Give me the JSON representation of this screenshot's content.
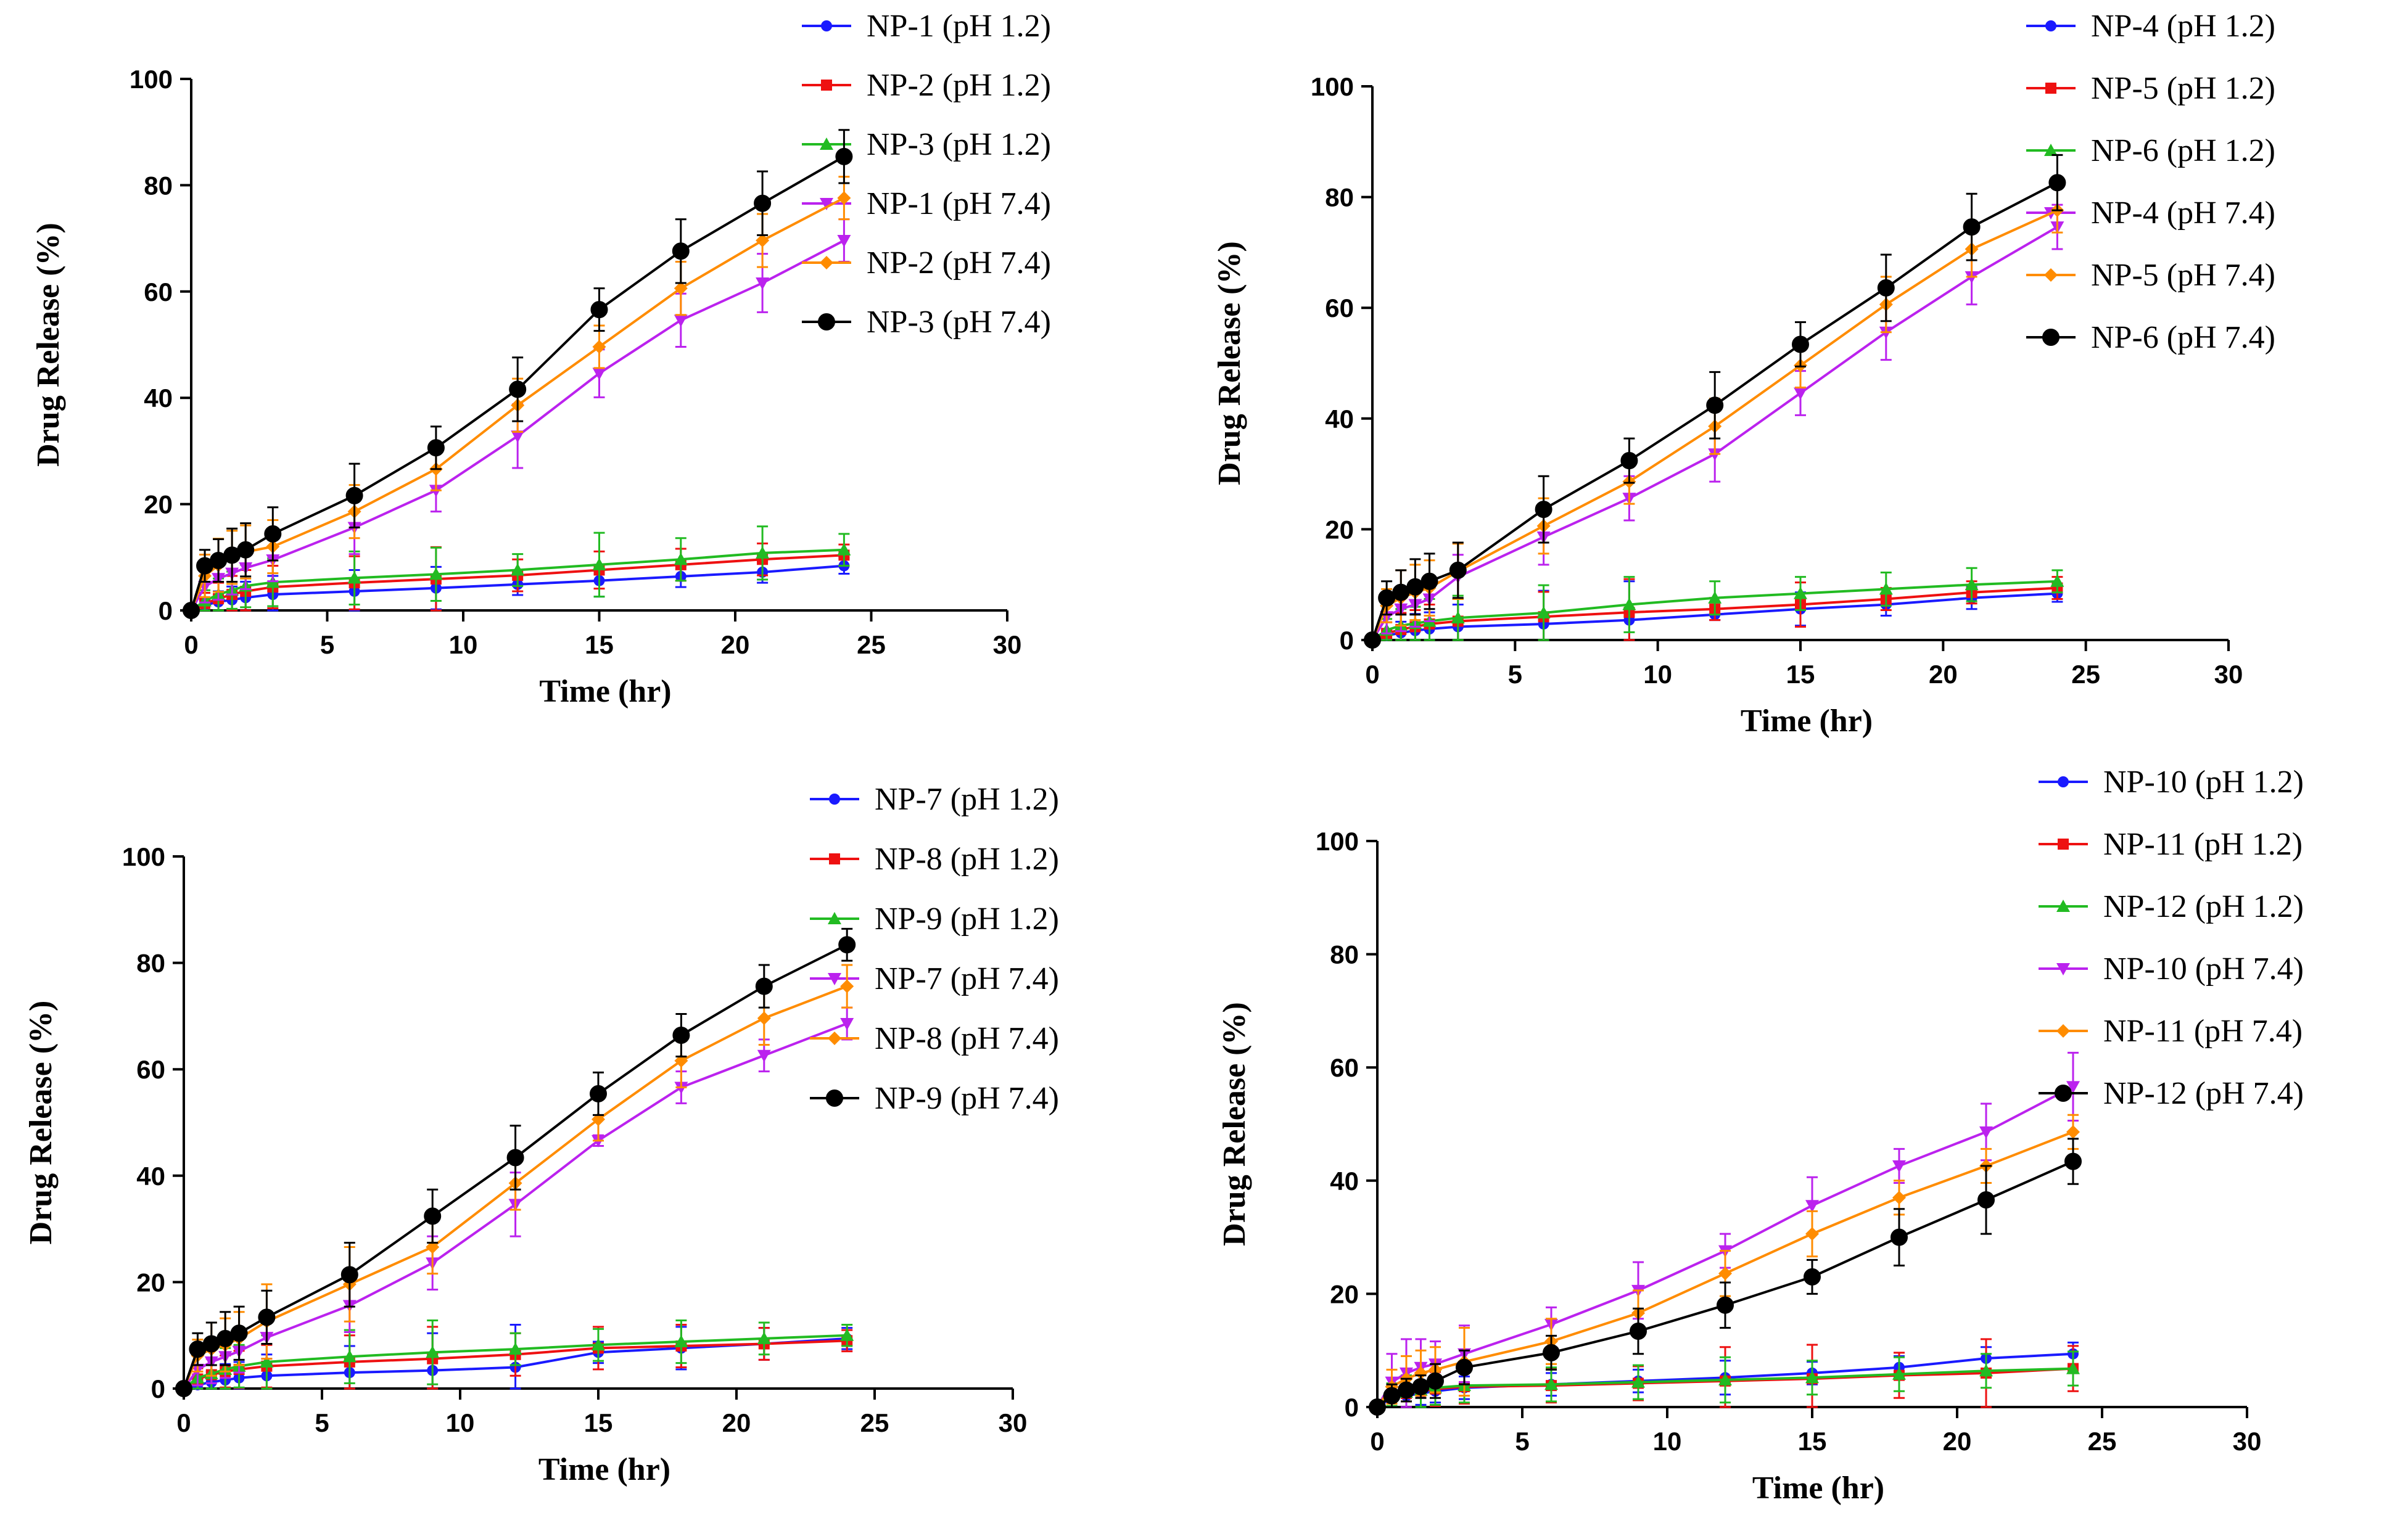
{
  "chart_data": [
    {
      "type": "line",
      "xlabel": "Time (hr)",
      "ylabel": "Drug Release (%)",
      "xlim": [
        0,
        30
      ],
      "ylim": [
        0,
        100
      ],
      "xticks": [
        0,
        5,
        10,
        15,
        20,
        25,
        30
      ],
      "yticks": [
        0,
        20,
        40,
        60,
        80,
        100
      ],
      "legend_position": "top-right",
      "x": [
        0,
        0.5,
        1,
        1.5,
        2,
        3,
        6,
        9,
        12,
        15,
        18,
        21,
        24
      ],
      "series": [
        {
          "name": "NP-1 (pH 1.2)",
          "color": "#1a1aff",
          "marker": "circle-small",
          "values": [
            0,
            1.0,
            1.6,
            2.0,
            2.4,
            3.0,
            3.6,
            4.2,
            4.9,
            5.6,
            6.4,
            7.2,
            8.4
          ],
          "errors": [
            0,
            1,
            2,
            2.5,
            3,
            3.5,
            4,
            4,
            2,
            3,
            2,
            2,
            1.5
          ]
        },
        {
          "name": "NP-2 (pH 1.2)",
          "color": "#ee1111",
          "marker": "square",
          "values": [
            0,
            1.3,
            2.2,
            3.0,
            3.6,
            4.4,
            5.2,
            5.9,
            6.6,
            7.6,
            8.6,
            9.6,
            10.4
          ],
          "errors": [
            0,
            2,
            3,
            3.5,
            4,
            4,
            5,
            6,
            3,
            3.5,
            3,
            3,
            2
          ]
        },
        {
          "name": "NP-3 (pH 1.2)",
          "color": "#22bb22",
          "marker": "triangle-up",
          "values": [
            0,
            1.8,
            3.0,
            3.8,
            4.6,
            5.3,
            6.1,
            6.8,
            7.6,
            8.6,
            9.6,
            10.8,
            11.4
          ],
          "errors": [
            0,
            2,
            3,
            3.5,
            4,
            4.5,
            5,
            5,
            3,
            6,
            4,
            5,
            3
          ]
        },
        {
          "name": "NP-1 (pH 7.4)",
          "color": "#bb22ee",
          "marker": "triangle-down",
          "values": [
            0,
            4.5,
            6.0,
            7.0,
            8.0,
            9.5,
            15.6,
            22.6,
            32.8,
            44.6,
            54.6,
            61.6,
            69.6
          ],
          "errors": [
            0,
            3,
            4,
            4,
            4,
            4,
            5,
            4,
            6,
            4.5,
            5,
            5.5,
            4
          ]
        },
        {
          "name": "NP-2 (pH 7.4)",
          "color": "#ff8c00",
          "marker": "diamond",
          "values": [
            0,
            6.5,
            8.5,
            10.0,
            11.0,
            12.0,
            18.6,
            26.6,
            38.6,
            49.6,
            60.6,
            69.6,
            77.6
          ],
          "errors": [
            0,
            4,
            5,
            5,
            5,
            5,
            5,
            4,
            5,
            4,
            5,
            5,
            4
          ]
        },
        {
          "name": "NP-3 (pH 7.4)",
          "color": "#000000",
          "marker": "circle",
          "values": [
            0,
            8.4,
            9.4,
            10.4,
            11.4,
            14.4,
            21.6,
            30.6,
            41.6,
            56.6,
            67.6,
            76.6,
            85.4
          ],
          "errors": [
            0,
            3,
            4,
            5,
            5,
            5,
            6,
            4,
            6,
            4,
            6,
            6,
            5
          ]
        }
      ]
    },
    {
      "type": "line",
      "xlabel": "Time (hr)",
      "ylabel": "Drug Release (%)",
      "xlim": [
        0,
        30
      ],
      "ylim": [
        0,
        100
      ],
      "xticks": [
        0,
        5,
        10,
        15,
        20,
        25,
        30
      ],
      "yticks": [
        0,
        20,
        40,
        60,
        80,
        100
      ],
      "legend_position": "top-right",
      "x": [
        0,
        0.5,
        1,
        1.5,
        2,
        3,
        6,
        9,
        12,
        15,
        18,
        21,
        24
      ],
      "series": [
        {
          "name": "NP-4 (pH 1.2)",
          "color": "#1a1aff",
          "marker": "circle-small",
          "values": [
            0,
            0.8,
            1.3,
            1.7,
            2.0,
            2.4,
            2.9,
            3.6,
            4.6,
            5.6,
            6.4,
            7.6,
            8.4
          ],
          "errors": [
            0,
            1,
            2,
            3,
            3,
            4,
            6,
            7,
            1,
            3,
            2,
            2,
            1.5
          ]
        },
        {
          "name": "NP-5 (pH 1.2)",
          "color": "#ee1111",
          "marker": "square",
          "values": [
            0,
            1.2,
            1.9,
            2.4,
            2.9,
            3.4,
            4.2,
            5.0,
            5.6,
            6.4,
            7.4,
            8.6,
            9.4
          ],
          "errors": [
            0,
            2,
            3,
            3,
            3.5,
            4,
            4.5,
            6,
            2,
            4,
            2,
            2,
            2
          ]
        },
        {
          "name": "NP-6 (pH 1.2)",
          "color": "#22bb22",
          "marker": "triangle-up",
          "values": [
            0,
            1.8,
            2.6,
            3.0,
            3.4,
            4.0,
            4.9,
            6.4,
            7.6,
            8.4,
            9.2,
            10.0,
            10.6
          ],
          "errors": [
            0,
            2,
            3,
            3,
            4,
            4,
            5,
            5,
            3,
            3,
            3,
            3,
            2
          ]
        },
        {
          "name": "NP-4 (pH 7.4)",
          "color": "#bb22ee",
          "marker": "triangle-down",
          "values": [
            0,
            4.2,
            5.6,
            6.4,
            7.4,
            11.4,
            18.6,
            25.6,
            33.6,
            44.6,
            55.6,
            65.6,
            74.6
          ],
          "errors": [
            0,
            3,
            4,
            4,
            4,
            4,
            5,
            4,
            5,
            4,
            5,
            5,
            4
          ]
        },
        {
          "name": "NP-5 (pH 7.4)",
          "color": "#ff8c00",
          "marker": "diamond",
          "values": [
            0,
            6.2,
            7.6,
            8.6,
            9.4,
            12.4,
            20.6,
            28.6,
            38.6,
            49.6,
            60.6,
            70.6,
            77.6
          ],
          "errors": [
            0,
            3,
            5,
            5,
            5,
            5,
            5,
            4,
            5,
            4,
            5,
            5,
            4
          ]
        },
        {
          "name": "NP-6 (pH 7.4)",
          "color": "#000000",
          "marker": "circle",
          "values": [
            0,
            7.6,
            8.6,
            9.6,
            10.6,
            12.6,
            23.6,
            32.4,
            42.4,
            53.4,
            63.6,
            74.6,
            82.6
          ],
          "errors": [
            0,
            3,
            4,
            5,
            5,
            5,
            6,
            4,
            6,
            4,
            6,
            6,
            5
          ]
        }
      ]
    },
    {
      "type": "line",
      "xlabel": "Time (hr)",
      "ylabel": "Drug Release (%)",
      "xlim": [
        0,
        30
      ],
      "ylim": [
        0,
        100
      ],
      "xticks": [
        0,
        5,
        10,
        15,
        20,
        25,
        30
      ],
      "yticks": [
        0,
        20,
        40,
        60,
        80,
        100
      ],
      "legend_position": "top-right",
      "x": [
        0,
        0.5,
        1,
        1.5,
        2,
        3,
        6,
        9,
        12,
        15,
        18,
        21,
        24
      ],
      "series": [
        {
          "name": "NP-7 (pH 1.2)",
          "color": "#1a1aff",
          "marker": "circle-small",
          "values": [
            0,
            0.7,
            1.2,
            1.6,
            2.0,
            2.4,
            3.0,
            3.4,
            4.0,
            6.8,
            7.6,
            8.4,
            9.4
          ],
          "errors": [
            0,
            1,
            2,
            3,
            3,
            4,
            5,
            7,
            8,
            2,
            4,
            3,
            2
          ]
        },
        {
          "name": "NP-8 (pH 1.2)",
          "color": "#ee1111",
          "marker": "square",
          "values": [
            0,
            1.8,
            2.6,
            3.2,
            3.6,
            4.2,
            5.0,
            5.6,
            6.4,
            7.6,
            8.0,
            8.4,
            9.0
          ],
          "errors": [
            0,
            2,
            3,
            3,
            3.5,
            4,
            5,
            6,
            4,
            4,
            4,
            3,
            2
          ]
        },
        {
          "name": "NP-9 (pH 1.2)",
          "color": "#22bb22",
          "marker": "triangle-up",
          "values": [
            0,
            2.0,
            2.8,
            3.6,
            4.2,
            5.0,
            6.0,
            6.8,
            7.4,
            8.2,
            8.8,
            9.4,
            10.0
          ],
          "errors": [
            0,
            2,
            3,
            4,
            4,
            5,
            5,
            6,
            3,
            3,
            4,
            3,
            2
          ]
        },
        {
          "name": "NP-7 (pH 7.4)",
          "color": "#bb22ee",
          "marker": "triangle-down",
          "values": [
            0,
            3.6,
            5.0,
            6.0,
            7.0,
            9.6,
            15.6,
            23.6,
            34.6,
            46.6,
            56.6,
            62.6,
            68.6
          ],
          "errors": [
            0,
            3,
            4,
            4,
            4,
            4,
            5,
            5,
            6,
            1,
            3,
            3,
            3
          ]
        },
        {
          "name": "NP-8 (pH 7.4)",
          "color": "#ff8c00",
          "marker": "diamond",
          "values": [
            0,
            6.2,
            7.4,
            8.2,
            9.4,
            12.6,
            19.6,
            26.6,
            38.6,
            50.6,
            61.6,
            69.6,
            75.6
          ],
          "errors": [
            0,
            3,
            5,
            5,
            5,
            7,
            7,
            5,
            5,
            4,
            5,
            5,
            4
          ]
        },
        {
          "name": "NP-9 (pH 7.4)",
          "color": "#000000",
          "marker": "circle",
          "values": [
            0,
            7.4,
            8.4,
            9.4,
            10.4,
            13.4,
            21.4,
            32.4,
            43.4,
            55.4,
            66.4,
            75.6,
            83.4
          ],
          "errors": [
            0,
            3,
            4,
            5,
            5,
            5,
            6,
            5,
            6,
            4,
            4,
            4,
            3
          ]
        }
      ]
    },
    {
      "type": "line",
      "xlabel": "Time (hr)",
      "ylabel": "Drug Release (%)",
      "xlim": [
        0,
        30
      ],
      "ylim": [
        0,
        100
      ],
      "xticks": [
        0,
        5,
        10,
        15,
        20,
        25,
        30
      ],
      "yticks": [
        0,
        20,
        40,
        60,
        80,
        100
      ],
      "legend_position": "top-right",
      "x": [
        0,
        0.5,
        1,
        1.5,
        2,
        3,
        6,
        9,
        12,
        15,
        18,
        21,
        24
      ],
      "series": [
        {
          "name": "NP-10 (pH 1.2)",
          "color": "#1a1aff",
          "marker": "circle-small",
          "values": [
            0,
            1.6,
            2.0,
            2.4,
            2.8,
            3.4,
            4.0,
            4.6,
            5.2,
            6.0,
            7.0,
            8.6,
            9.4
          ],
          "errors": [
            0,
            2,
            2,
            2,
            2,
            2,
            2,
            2,
            3,
            2,
            2,
            2,
            2
          ]
        },
        {
          "name": "NP-11 (pH 1.2)",
          "color": "#ee1111",
          "marker": "square",
          "values": [
            0,
            2.0,
            2.4,
            2.8,
            3.2,
            3.6,
            3.8,
            4.2,
            4.6,
            5.0,
            5.6,
            6.0,
            6.8
          ],
          "errors": [
            0,
            2,
            3,
            3,
            3,
            3,
            3,
            3,
            6,
            6,
            4,
            6,
            4
          ]
        },
        {
          "name": "NP-12 (pH 1.2)",
          "color": "#22bb22",
          "marker": "triangle-up",
          "values": [
            0,
            2.2,
            2.6,
            3.0,
            3.4,
            3.8,
            4.0,
            4.4,
            4.8,
            5.2,
            5.8,
            6.4,
            6.8
          ],
          "errors": [
            0,
            2,
            3,
            3,
            3,
            3,
            3,
            3,
            4,
            3,
            3,
            3,
            3
          ]
        },
        {
          "name": "NP-10 (pH 7.4)",
          "color": "#bb22ee",
          "marker": "triangle-down",
          "values": [
            0,
            4.4,
            6.0,
            7.0,
            7.6,
            9.4,
            14.6,
            20.6,
            27.6,
            35.6,
            42.6,
            48.6,
            56.6
          ],
          "errors": [
            0,
            5,
            6,
            5,
            4,
            5,
            3,
            5,
            3,
            5,
            3,
            5,
            6
          ]
        },
        {
          "name": "NP-11 (pH 7.4)",
          "color": "#ff8c00",
          "marker": "diamond",
          "values": [
            0,
            3.6,
            5.0,
            6.0,
            6.6,
            8.0,
            11.6,
            16.6,
            23.6,
            30.6,
            37.0,
            42.6,
            48.6
          ],
          "errors": [
            0,
            3,
            4,
            4,
            4,
            6,
            4,
            4,
            4,
            4,
            3,
            3,
            3
          ]
        },
        {
          "name": "NP-12 (pH 7.4)",
          "color": "#000000",
          "marker": "circle",
          "values": [
            0,
            2.0,
            3.0,
            3.6,
            4.6,
            7.0,
            9.6,
            13.4,
            18.0,
            23.0,
            30.0,
            36.6,
            43.4
          ],
          "errors": [
            0,
            2,
            2,
            2,
            3,
            3,
            3,
            4,
            4,
            3,
            5,
            6,
            4
          ]
        }
      ]
    }
  ]
}
